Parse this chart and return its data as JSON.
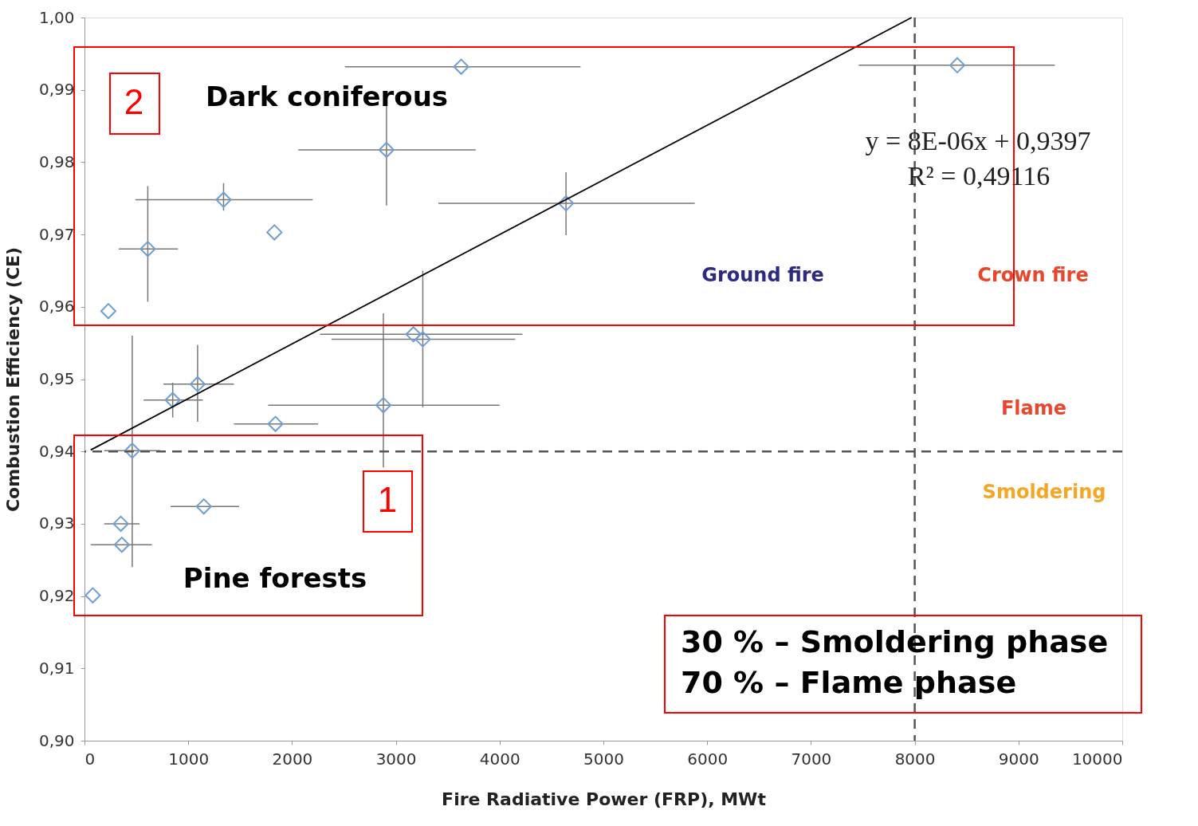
{
  "chart_data": {
    "type": "scatter",
    "xlabel": "Fire Radiative Power (FRP), MWt",
    "ylabel": "Combustion Efficiency (CE)",
    "xlim": [
      0,
      10000
    ],
    "xticks": [
      0,
      1000,
      2000,
      3000,
      4000,
      5000,
      6000,
      7000,
      8000,
      9000,
      10000
    ],
    "ylim": [
      0.9,
      1.0
    ],
    "yticks": [
      {
        "value": 0.9,
        "label": "0,90"
      },
      {
        "value": 0.91,
        "label": "0,91"
      },
      {
        "value": 0.92,
        "label": "0,92"
      },
      {
        "value": 0.93,
        "label": "0,93"
      },
      {
        "value": 0.94,
        "label": "0,94"
      },
      {
        "value": 0.95,
        "label": "0,95"
      },
      {
        "value": 0.96,
        "label": "0,96"
      },
      {
        "value": 0.97,
        "label": "0,97"
      },
      {
        "value": 0.98,
        "label": "0,98"
      },
      {
        "value": 0.99,
        "label": "0,99"
      },
      {
        "value": 1.0,
        "label": "1,00"
      }
    ],
    "grid": false,
    "series": [
      {
        "color": "#6f9fd0",
        "marker": "diamond",
        "x": [
          3630,
          8410,
          2910,
          1340,
          1830,
          610,
          4640,
          230,
          3170,
          3260,
          2880,
          1090,
          850,
          1840,
          460,
          1150,
          350,
          360,
          80
        ],
        "values": [
          0.9932,
          0.9934,
          0.9817,
          0.9748,
          0.9703,
          0.968,
          0.9743,
          0.9594,
          0.9562,
          0.9555,
          0.9464,
          0.9493,
          0.9471,
          0.9438,
          0.9401,
          0.9324,
          0.93,
          0.9271,
          0.9201
        ],
        "errors": [
          null,
          null,
          [
            0.974,
            0.988
          ],
          [
            0.9733,
            0.9771
          ],
          null,
          [
            0.9607,
            0.9767
          ],
          [
            0.9699,
            0.9786
          ],
          null,
          null,
          [
            0.9461,
            0.965
          ],
          [
            0.9378,
            0.9591
          ],
          [
            0.9441,
            0.9547
          ],
          [
            0.9447,
            0.9495
          ],
          null,
          [
            0.924,
            0.956
          ],
          null,
          null,
          null,
          null
        ],
        "xerrors": [
          [
            2510,
            4780
          ],
          [
            7460,
            9350
          ],
          [
            2060,
            3770
          ],
          [
            490,
            2200
          ],
          null,
          [
            330,
            900
          ],
          [
            3410,
            5880
          ],
          null,
          [
            2270,
            4220
          ],
          [
            2380,
            4150
          ],
          [
            1770,
            4000
          ],
          [
            760,
            1440
          ],
          [
            570,
            1140
          ],
          [
            1440,
            2250
          ],
          [
            190,
            730
          ],
          [
            830,
            1490
          ],
          [
            190,
            530
          ],
          [
            60,
            650
          ],
          null
        ]
      },
      {
        "type": "line",
        "color": "#000000",
        "marker": "none",
        "line_style": "solid",
        "x": [
          60,
          7970
        ],
        "values": [
          0.9402,
          1.0
        ]
      }
    ],
    "ref_lines": [
      {
        "axis": "y",
        "value": 0.94,
        "line_style": "dashed",
        "color": "#555555"
      },
      {
        "axis": "x",
        "value": 8000,
        "line_style": "dashed",
        "color": "#555555"
      }
    ],
    "annotations": [
      "2",
      "Dark coniferous",
      "1",
      "Pine forests",
      "Ground fire",
      "Crown fire",
      "Flame",
      "Smoldering",
      "y = 8E-06x + 0,9397",
      "R² = 0,49116",
      "30 % – Smoldering phase",
      "70 % – Flame phase"
    ]
  }
}
